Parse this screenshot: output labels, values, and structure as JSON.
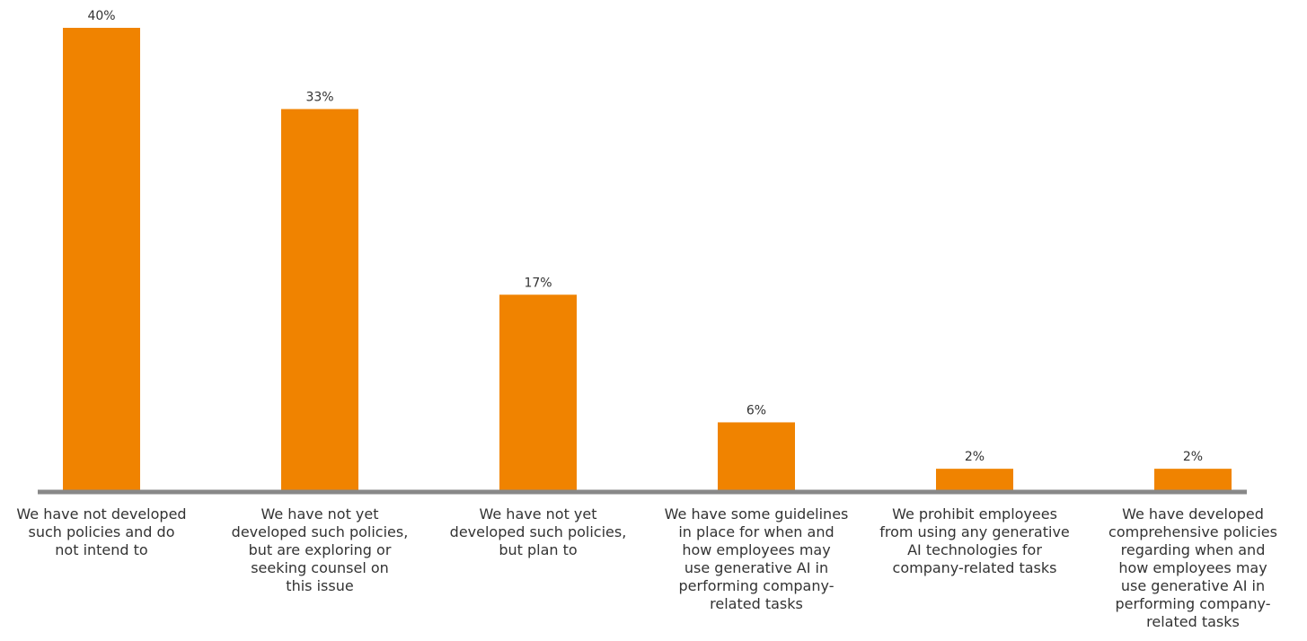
{
  "chart_data": {
    "type": "bar",
    "categories": [
      [
        "We have not developed",
        "such policies and do",
        "not intend to"
      ],
      [
        "We have not yet",
        "developed such policies,",
        "but are exploring or",
        "seeking counsel on",
        "this issue"
      ],
      [
        "We have not yet",
        "developed such policies,",
        "but plan to"
      ],
      [
        "We have some guidelines",
        "in place for when and",
        "how employees may",
        "use generative AI in",
        "performing company-",
        "related tasks"
      ],
      [
        "We prohibit employees",
        "from using any generative",
        "AI technologies for",
        "company-related tasks"
      ],
      [
        "We have developed",
        "comprehensive policies",
        "regarding when and",
        "how employees may",
        "use generative AI in",
        "performing company-",
        "related tasks"
      ]
    ],
    "values": [
      40,
      33,
      17,
      6,
      2,
      2
    ],
    "value_labels": [
      "40%",
      "33%",
      "17%",
      "6%",
      "2%",
      "2%"
    ],
    "ylim": [
      0,
      40
    ],
    "bar_color": "#F08300",
    "axis_color": "#888888",
    "grid": false,
    "legend": "none"
  }
}
